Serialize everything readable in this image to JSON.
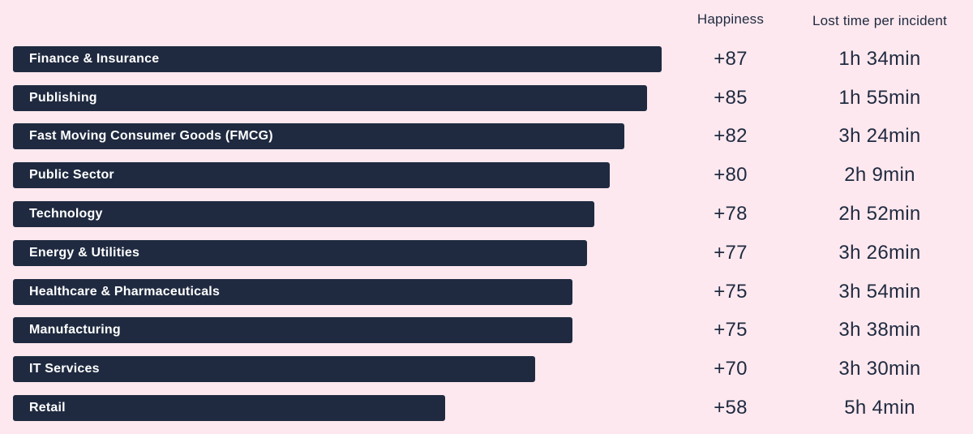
{
  "colors": {
    "background": "#fce8ee",
    "bar": "#1f2a40",
    "bar_label_text": "#ffffff",
    "value_text": "#1f2a40"
  },
  "header": {
    "happiness_label": "Happiness",
    "lost_time_label": "Lost time per incident"
  },
  "chart_data": {
    "type": "bar",
    "orientation": "horizontal",
    "title": "",
    "xlabel": "",
    "ylabel": "",
    "xlim": [
      0,
      87
    ],
    "grid": false,
    "legend_position": "none",
    "columns": [
      "Happiness",
      "Lost time per incident"
    ],
    "categories": [
      "Finance & Insurance",
      "Publishing",
      "Fast Moving Consumer Goods (FMCG)",
      "Public Sector",
      "Technology",
      "Energy & Utilities",
      "Healthcare & Pharmaceuticals",
      "Manufacturing",
      "IT Services",
      "Retail"
    ],
    "series": [
      {
        "name": "Happiness",
        "values": [
          87,
          85,
          82,
          80,
          78,
          77,
          75,
          75,
          70,
          58
        ],
        "display": [
          "+87",
          "+85",
          "+82",
          "+80",
          "+78",
          "+77",
          "+75",
          "+75",
          "+70",
          "+58"
        ]
      },
      {
        "name": "Lost time per incident",
        "display": [
          "1h 34min",
          "1h 55min",
          "3h 24min",
          "2h 9min",
          "2h 52min",
          "3h 26min",
          "3h 54min",
          "3h 38min",
          "3h 30min",
          "5h 4min"
        ]
      }
    ]
  }
}
